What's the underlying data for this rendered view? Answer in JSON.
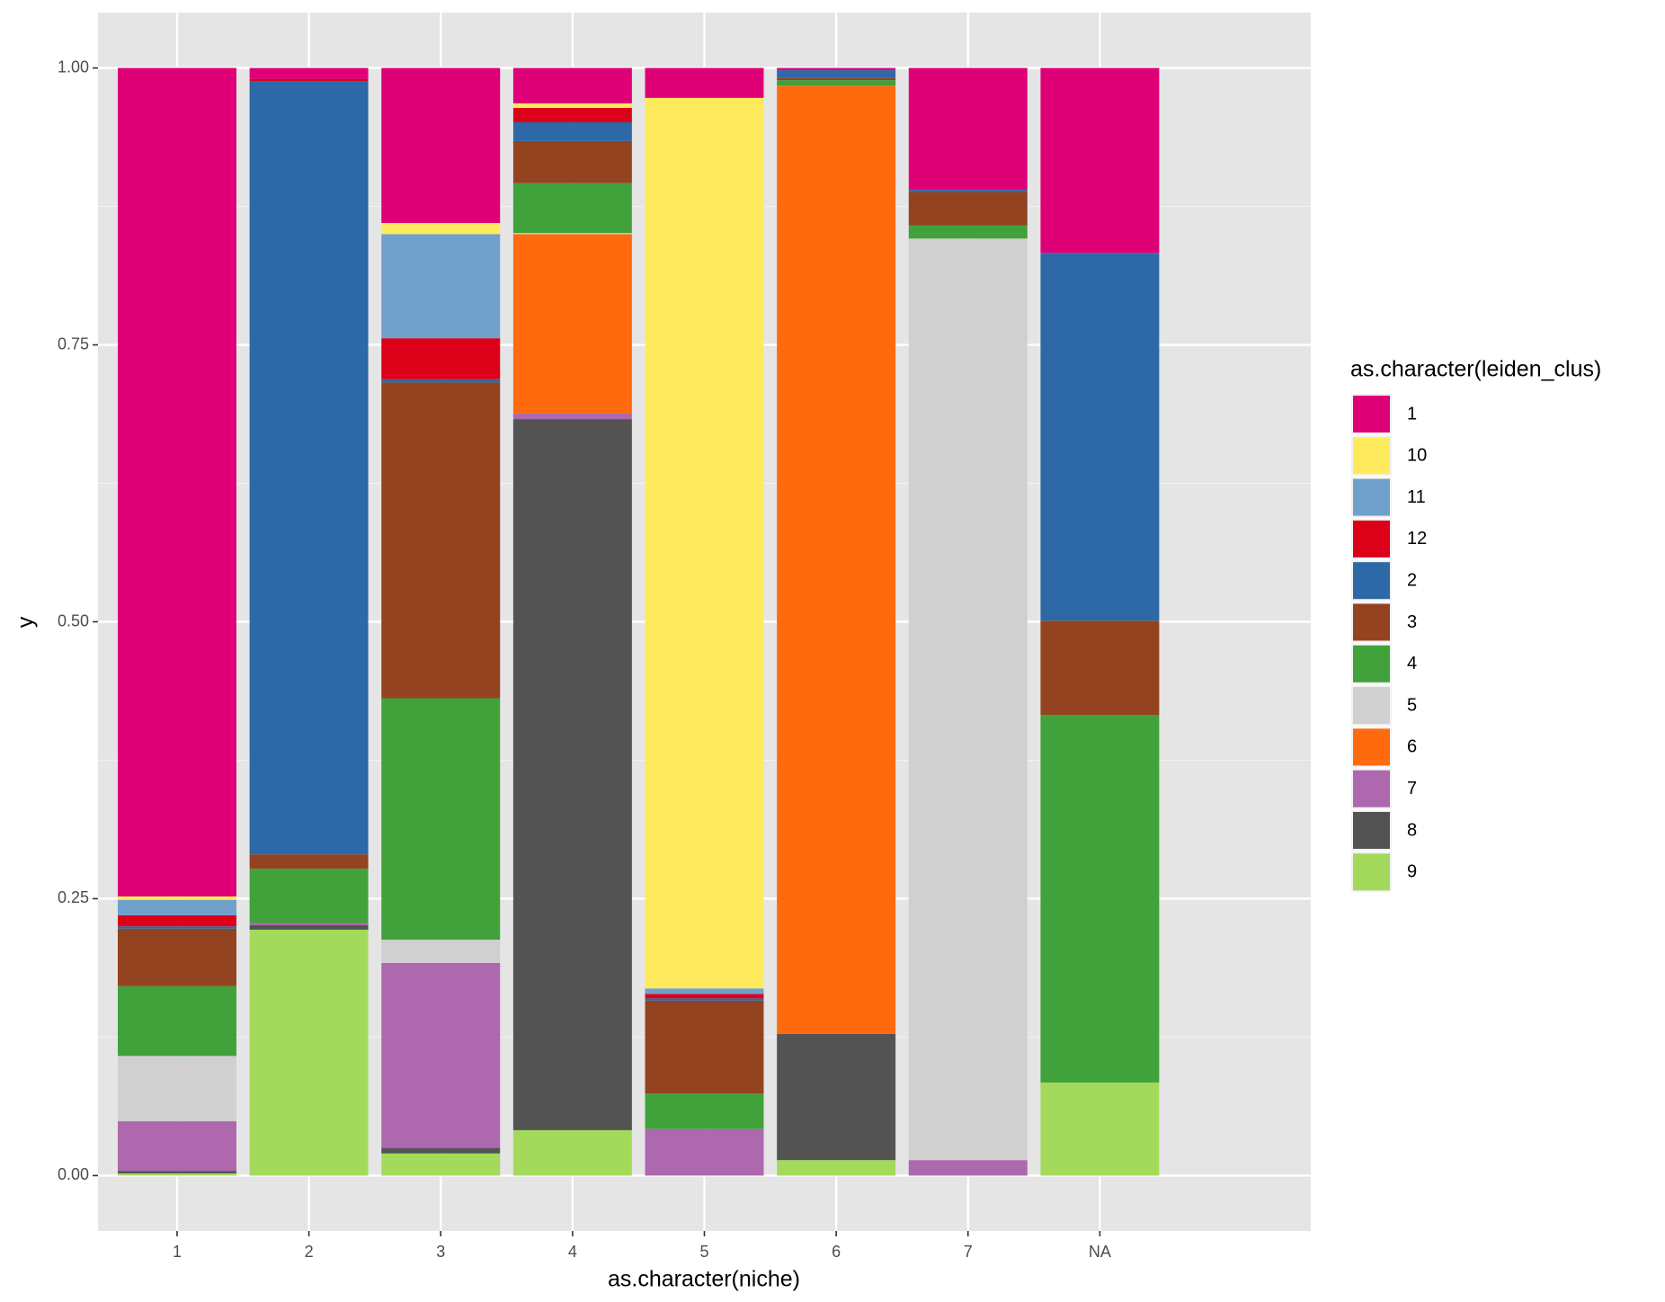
{
  "chart_data": {
    "type": "stacked_bar",
    "x_label": "as.character(niche)",
    "y_label": "y",
    "legend_title": "as.character(leiden_clus)",
    "legend_position": "right",
    "grid": true,
    "categories": [
      "1",
      "2",
      "3",
      "4",
      "5",
      "6",
      "7",
      "NA"
    ],
    "ylim": [
      -0.05,
      1.05
    ],
    "yticks": [
      {
        "value": 0,
        "label": "0.00"
      },
      {
        "value": 0.25,
        "label": "0.25"
      },
      {
        "value": 0.5,
        "label": "0.50"
      },
      {
        "value": 0.75,
        "label": "0.75"
      },
      {
        "value": 1,
        "label": "1.00"
      }
    ],
    "series": [
      {
        "name": "1",
        "color": "#DF0077",
        "values": [
          0.748,
          0.01,
          0.14,
          0.032,
          0.027,
          0.002,
          0.11,
          0.167
        ]
      },
      {
        "name": "10",
        "color": "#FEEB5D",
        "values": [
          0.003,
          0,
          0.01,
          0.004,
          0.804,
          0,
          0,
          0
        ]
      },
      {
        "name": "11",
        "color": "#6FA1CB",
        "values": [
          0.014,
          0,
          0.094,
          0,
          0.005,
          0,
          0,
          0
        ]
      },
      {
        "name": "12",
        "color": "#DC0019",
        "values": [
          0.01,
          0.002,
          0.037,
          0.013,
          0.004,
          0,
          0,
          0
        ]
      },
      {
        "name": "2",
        "color": "#2D69A7",
        "values": [
          0.002,
          0.698,
          0.003,
          0.017,
          0.002,
          0.007,
          0.002,
          0.332
        ]
      },
      {
        "name": "3",
        "color": "#934320",
        "values": [
          0.052,
          0.013,
          0.285,
          0.038,
          0.084,
          0.002,
          0.03,
          0.085
        ]
      },
      {
        "name": "4",
        "color": "#41A13B",
        "values": [
          0.063,
          0.049,
          0.218,
          0.045,
          0.032,
          0.005,
          0.012,
          0.332
        ]
      },
      {
        "name": "5",
        "color": "#D0D0D0",
        "values": [
          0.059,
          0,
          0.021,
          0.001,
          0,
          0,
          0.832,
          0
        ]
      },
      {
        "name": "6",
        "color": "#FF6A0E",
        "values": [
          0,
          0,
          0,
          0.162,
          0,
          0.856,
          0,
          0
        ]
      },
      {
        "name": "7",
        "color": "#AE68AE",
        "values": [
          0.045,
          0.002,
          0.167,
          0.005,
          0.042,
          0,
          0.014,
          0
        ]
      },
      {
        "name": "8",
        "color": "#535353",
        "values": [
          0.002,
          0.004,
          0.005,
          0.642,
          0,
          0.114,
          0,
          0
        ]
      },
      {
        "name": "9",
        "color": "#A4DA5B",
        "values": [
          0.002,
          0.222,
          0.02,
          0.041,
          0,
          0.014,
          0,
          0.084
        ]
      }
    ]
  }
}
